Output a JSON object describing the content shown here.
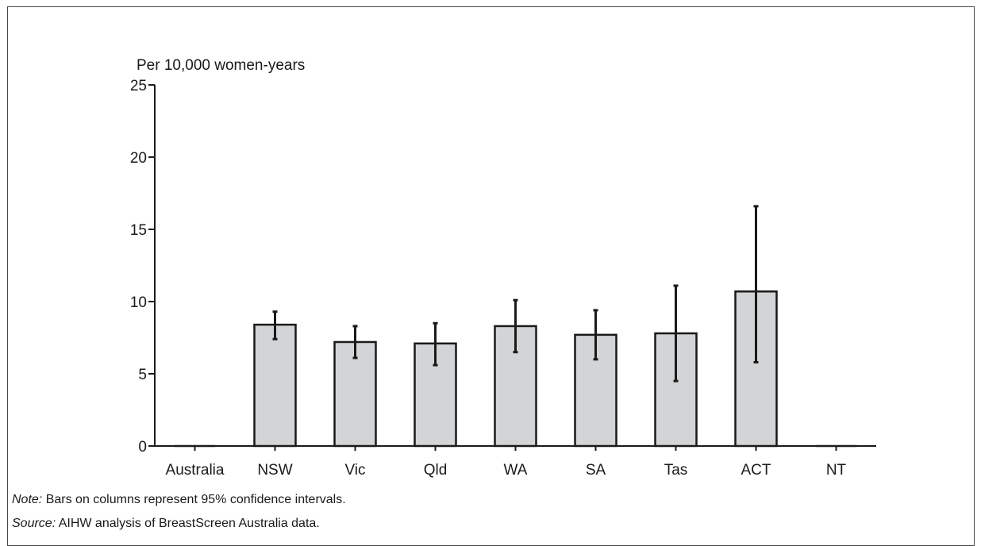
{
  "chart_data": {
    "type": "bar",
    "ylabel": "Per 10,000 women-years",
    "xlabel": "",
    "ylim": [
      0,
      25
    ],
    "yticks": [
      0,
      5,
      10,
      15,
      20,
      25
    ],
    "categories": [
      "Australia",
      "NSW",
      "Vic",
      "Qld",
      "WA",
      "SA",
      "Tas",
      "ACT",
      "NT"
    ],
    "values": [
      0,
      8.4,
      7.2,
      7.1,
      8.3,
      7.7,
      7.8,
      10.7,
      0
    ],
    "error_low": [
      null,
      7.4,
      6.1,
      5.6,
      6.5,
      6.0,
      4.5,
      5.8,
      null
    ],
    "error_high": [
      null,
      9.3,
      8.3,
      8.5,
      10.1,
      9.4,
      11.1,
      16.6,
      null
    ],
    "grid": false,
    "legend": "none",
    "colors": {
      "bar_fill": "#d3d4d5",
      "bar_stroke": "#1a1a1a",
      "axis": "#1a1a1a"
    }
  },
  "note": {
    "prefix": "Note:",
    "text": " Bars on columns represent 95% confidence intervals."
  },
  "source": {
    "prefix": "Source:",
    "text": " AIHW analysis of BreastScreen Australia data."
  }
}
